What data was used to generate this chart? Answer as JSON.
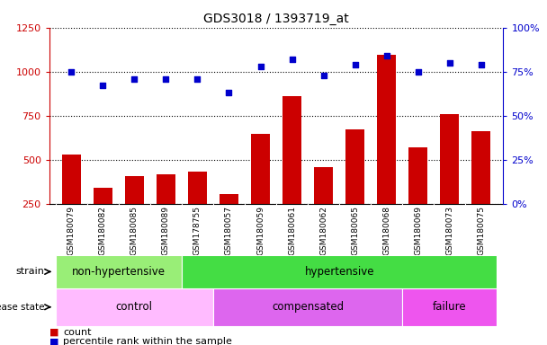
{
  "title": "GDS3018 / 1393719_at",
  "samples": [
    "GSM180079",
    "GSM180082",
    "GSM180085",
    "GSM180089",
    "GSM178755",
    "GSM180057",
    "GSM180059",
    "GSM180061",
    "GSM180062",
    "GSM180065",
    "GSM180068",
    "GSM180069",
    "GSM180073",
    "GSM180075"
  ],
  "counts": [
    530,
    340,
    405,
    415,
    430,
    305,
    645,
    860,
    455,
    670,
    1095,
    570,
    760,
    660
  ],
  "percentiles": [
    75,
    67,
    71,
    71,
    71,
    63,
    78,
    82,
    73,
    79,
    84,
    75,
    80,
    79
  ],
  "bar_color": "#cc0000",
  "dot_color": "#0000cc",
  "ylim_left": [
    250,
    1250
  ],
  "ylim_right": [
    0,
    100
  ],
  "yticks_left": [
    250,
    500,
    750,
    1000,
    1250
  ],
  "yticks_right": [
    0,
    25,
    50,
    75,
    100
  ],
  "yticklabels_right": [
    "0%",
    "25%",
    "50%",
    "75%",
    "100%"
  ],
  "strain_groups": [
    {
      "label": "non-hypertensive",
      "start": 0,
      "end": 4,
      "color": "#99ee77"
    },
    {
      "label": "hypertensive",
      "start": 4,
      "end": 14,
      "color": "#44dd44"
    }
  ],
  "disease_groups": [
    {
      "label": "control",
      "start": 0,
      "end": 5,
      "color": "#ffbbff"
    },
    {
      "label": "compensated",
      "start": 5,
      "end": 11,
      "color": "#dd66ee"
    },
    {
      "label": "failure",
      "start": 11,
      "end": 14,
      "color": "#ee55ee"
    }
  ],
  "legend_count_color": "#cc0000",
  "legend_percentile_color": "#0000cc",
  "bg_color": "#ffffff",
  "tick_area_color": "#cccccc",
  "grid_color": "#000000",
  "grid_linestyle": "dotted",
  "grid_linewidth": 0.8
}
